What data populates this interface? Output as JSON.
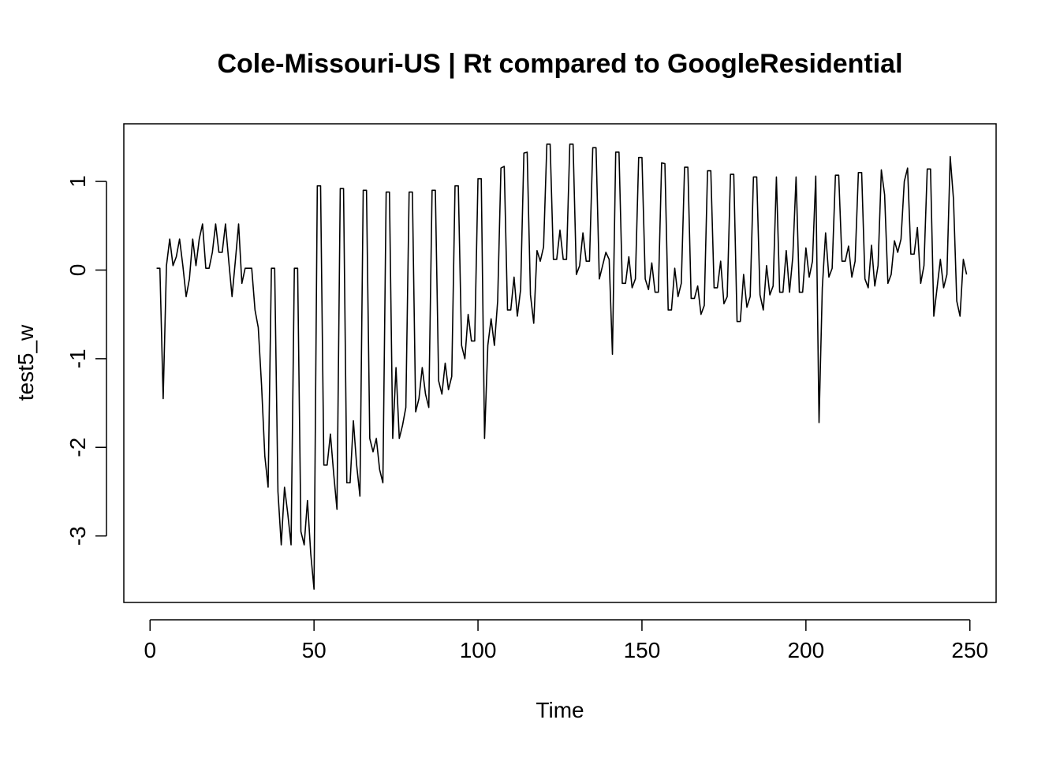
{
  "chart_data": {
    "type": "line",
    "title": "Cole-Missouri-US | Rt compared to GoogleResidential",
    "xlabel": "Time",
    "ylabel": "test5_w",
    "xlim": [
      -8,
      258
    ],
    "ylim": [
      -3.75,
      1.65
    ],
    "x_ticks": [
      0,
      50,
      100,
      150,
      200,
      250
    ],
    "y_ticks": [
      -3,
      -2,
      -1,
      0,
      1
    ],
    "x_tick_labels": [
      "0",
      "50",
      "100",
      "150",
      "200",
      "250"
    ],
    "y_tick_labels": [
      "-3",
      "-2",
      "-1",
      "0",
      "1"
    ],
    "series": [
      {
        "x_start": 2,
        "values": [
          0.02,
          0.02,
          -1.45,
          0.05,
          0.35,
          0.05,
          0.15,
          0.35,
          0.05,
          -0.3,
          -0.1,
          0.35,
          0.05,
          0.35,
          0.52,
          0.02,
          0.02,
          0.2,
          0.52,
          0.2,
          0.2,
          0.52,
          0.1,
          -0.3,
          0.1,
          0.52,
          -0.15,
          0.02,
          0.02,
          0.02,
          -0.45,
          -0.65,
          -1.3,
          -2.1,
          -2.45,
          0.02,
          0.02,
          -2.5,
          -3.1,
          -2.45,
          -2.75,
          -3.1,
          0.02,
          0.02,
          -2.95,
          -3.1,
          -2.6,
          -3.2,
          -3.6,
          0.95,
          0.95,
          -2.2,
          -2.2,
          -1.85,
          -2.3,
          -2.7,
          0.92,
          0.92,
          -2.4,
          -2.4,
          -1.7,
          -2.2,
          -2.55,
          0.9,
          0.9,
          -1.9,
          -2.05,
          -1.9,
          -2.25,
          -2.4,
          0.88,
          0.88,
          -1.9,
          -1.1,
          -1.9,
          -1.75,
          -1.55,
          0.88,
          0.88,
          -1.6,
          -1.45,
          -1.1,
          -1.4,
          -1.55,
          0.9,
          0.9,
          -1.25,
          -1.4,
          -1.05,
          -1.35,
          -1.2,
          0.95,
          0.95,
          -0.85,
          -1.0,
          -0.5,
          -0.8,
          -0.8,
          1.03,
          1.03,
          -1.9,
          -0.85,
          -0.55,
          -0.85,
          -0.35,
          1.15,
          1.17,
          -0.45,
          -0.45,
          -0.08,
          -0.52,
          -0.22,
          1.32,
          1.33,
          -0.28,
          -0.6,
          0.22,
          0.1,
          0.26,
          1.42,
          1.42,
          0.12,
          0.12,
          0.45,
          0.12,
          0.12,
          1.42,
          1.42,
          -0.05,
          0.05,
          0.42,
          0.1,
          0.1,
          1.38,
          1.38,
          -0.1,
          0.05,
          0.2,
          0.12,
          -0.95,
          1.33,
          1.33,
          -0.15,
          -0.15,
          0.15,
          -0.2,
          -0.1,
          1.27,
          1.27,
          -0.1,
          -0.22,
          0.08,
          -0.25,
          -0.25,
          1.21,
          1.2,
          -0.45,
          -0.45,
          0.02,
          -0.3,
          -0.15,
          1.16,
          1.16,
          -0.32,
          -0.32,
          -0.18,
          -0.5,
          -0.4,
          1.12,
          1.12,
          -0.2,
          -0.2,
          0.1,
          -0.38,
          -0.3,
          1.08,
          1.08,
          -0.58,
          -0.58,
          -0.05,
          -0.42,
          -0.3,
          1.05,
          1.05,
          -0.28,
          -0.45,
          0.05,
          -0.28,
          -0.18,
          1.05,
          -0.25,
          -0.25,
          0.22,
          -0.25,
          0.15,
          1.05,
          -0.25,
          -0.25,
          0.25,
          -0.08,
          0.1,
          1.06,
          -1.72,
          -0.2,
          0.42,
          -0.08,
          0.02,
          1.07,
          1.07,
          0.1,
          0.1,
          0.27,
          -0.08,
          0.1,
          1.1,
          1.1,
          -0.1,
          -0.2,
          0.28,
          -0.18,
          0.05,
          1.13,
          0.85,
          -0.15,
          -0.05,
          0.33,
          0.2,
          0.35,
          1.0,
          1.15,
          0.18,
          0.18,
          0.48,
          -0.15,
          0.05,
          1.14,
          1.14,
          -0.52,
          -0.2,
          0.12,
          -0.2,
          -0.05,
          1.28,
          0.8,
          -0.35,
          -0.52,
          0.12,
          -0.05
        ]
      }
    ]
  }
}
